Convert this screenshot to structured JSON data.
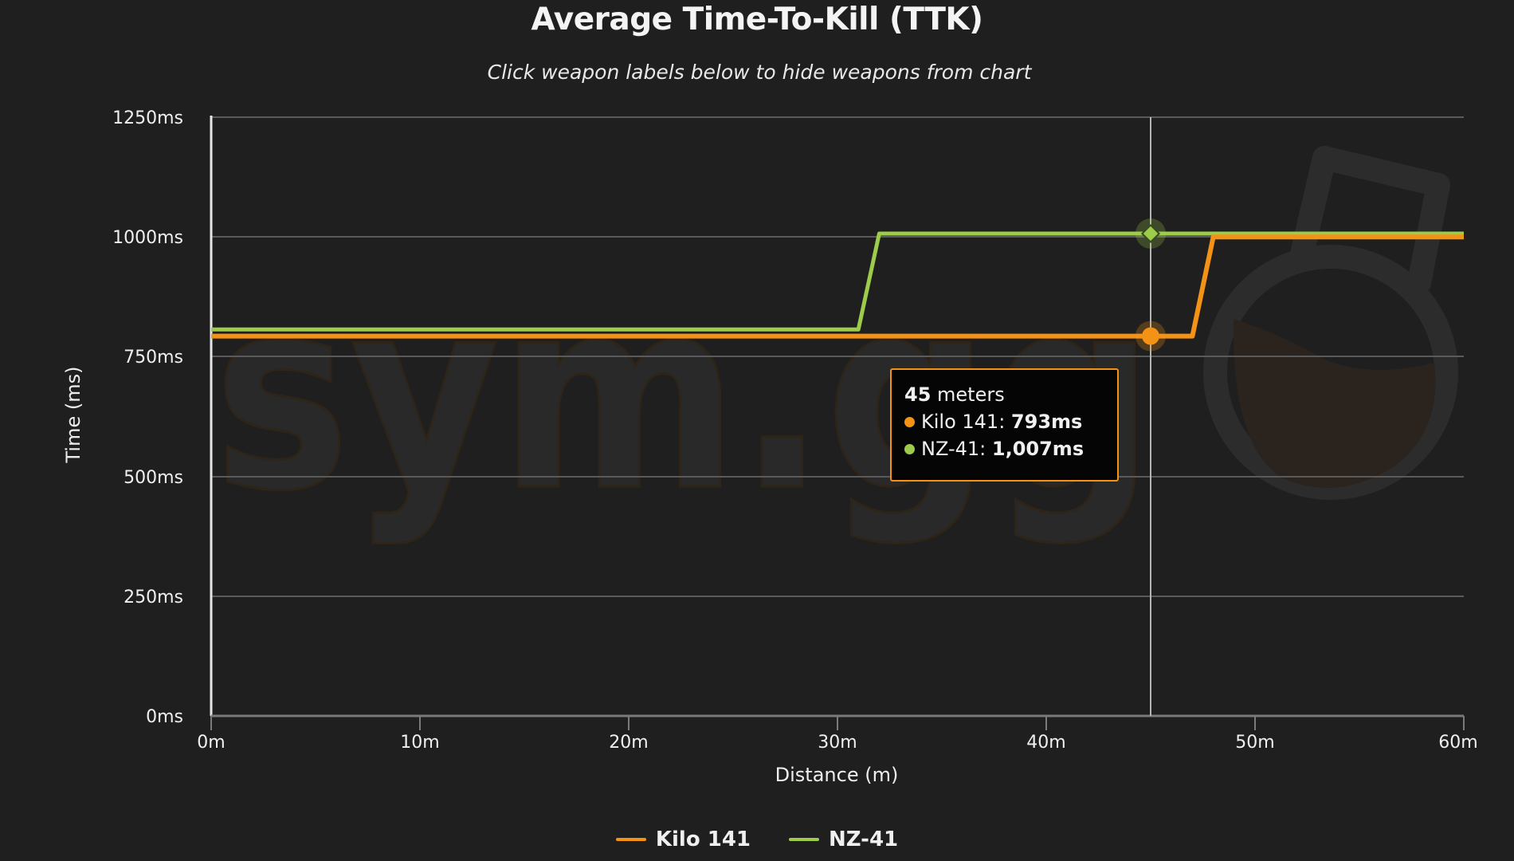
{
  "header": {
    "title": "Average Time-To-Kill (TTK)",
    "subtitle": "Click weapon labels below to hide weapons from chart"
  },
  "colors": {
    "background": "#1f1f1f",
    "kilo_141": "#f39214",
    "nz_41": "#9ccc4a",
    "gridline": "#5a5a5a",
    "tooltip_border": "#f39214"
  },
  "watermark": {
    "text": "sym.gg",
    "logo": "flask-logo-icon"
  },
  "axes": {
    "y_title": "Time (ms)",
    "x_title": "Distance (m)",
    "y_ticks": [
      "0ms",
      "250ms",
      "500ms",
      "750ms",
      "1000ms",
      "1250ms"
    ],
    "x_ticks": [
      "0m",
      "10m",
      "20m",
      "30m",
      "40m",
      "50m",
      "60m"
    ]
  },
  "tooltip": {
    "distance_value": "45",
    "distance_unit": " meters",
    "rows": [
      {
        "label": "Kilo 141: ",
        "value": "793ms",
        "color": "#f39214"
      },
      {
        "label": "NZ-41: ",
        "value": "1,007ms",
        "color": "#9ccc4a"
      }
    ]
  },
  "legend": {
    "items": [
      {
        "label": "Kilo 141",
        "color": "#f39214"
      },
      {
        "label": "NZ-41",
        "color": "#9ccc4a"
      }
    ]
  },
  "chart_data": {
    "type": "line",
    "title": "Average Time-To-Kill (TTK)",
    "subtitle": "Click weapon labels below to hide weapons from chart",
    "xlabel": "Distance (m)",
    "ylabel": "Time (ms)",
    "xlim": [
      0,
      60
    ],
    "ylim": [
      0,
      1250
    ],
    "x_ticks": [
      0,
      10,
      20,
      30,
      40,
      50,
      60
    ],
    "y_ticks": [
      0,
      250,
      500,
      750,
      1000,
      1250
    ],
    "grid": true,
    "legend_position": "bottom",
    "step_lines": true,
    "series": [
      {
        "name": "Kilo 141",
        "color": "#f39214",
        "points": [
          [
            0,
            793
          ],
          [
            47,
            793
          ],
          [
            48,
            1000
          ],
          [
            60,
            1000
          ]
        ]
      },
      {
        "name": "NZ-41",
        "color": "#9ccc4a",
        "points": [
          [
            0,
            807
          ],
          [
            31,
            807
          ],
          [
            32,
            1007
          ],
          [
            60,
            1007
          ]
        ]
      }
    ],
    "hover": {
      "x": 45,
      "values": {
        "Kilo 141": 793,
        "NZ-41": 1007
      }
    }
  }
}
